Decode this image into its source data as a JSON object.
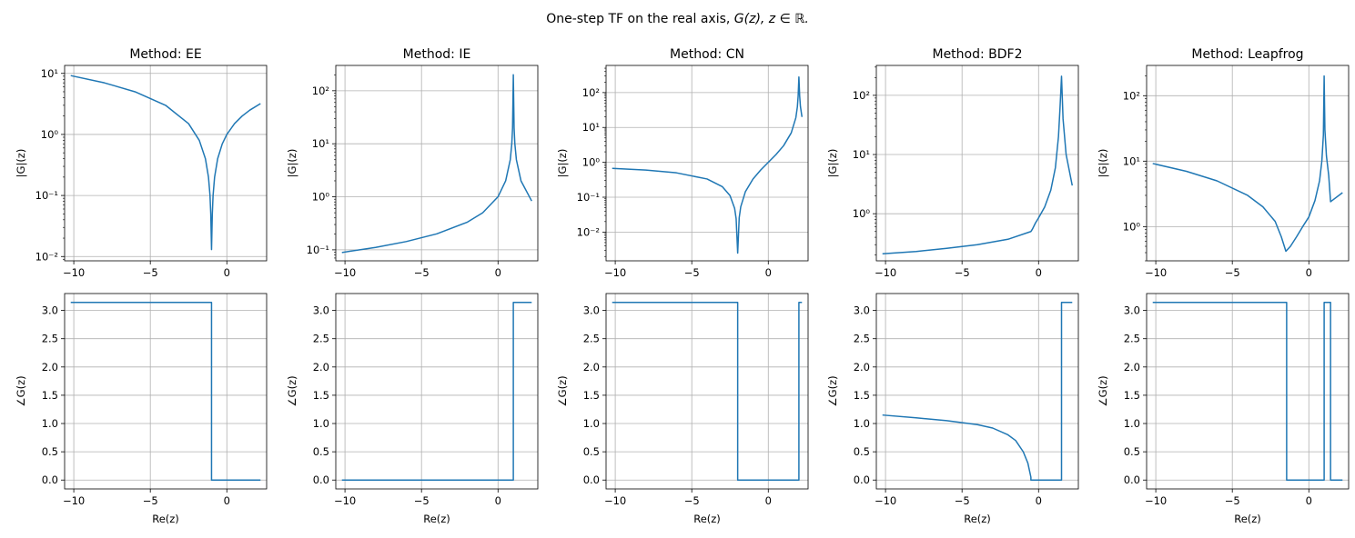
{
  "suptitle_prefix": "One-step TF on the real axis, ",
  "suptitle_math": "G(z), z ∈ ℝ.",
  "line_color": "#1f77b4",
  "grid_color": "#b0b0b0",
  "xticks": [
    -10,
    -5,
    0
  ],
  "xlabel": "Re(z)",
  "ylabel_mag": "|G|(z)",
  "ylabel_phase": "∠G(z)",
  "chart_data": [
    {
      "type": "line",
      "method": "EE",
      "title": "Method: EE",
      "row": "magnitude",
      "yscale": "log",
      "xlim": [
        -10.6,
        2.6
      ],
      "ylim": [
        0.0085,
        13.5
      ],
      "yticks": [
        {
          "v": 10,
          "label": "10¹"
        },
        {
          "v": 1,
          "label": "10⁰"
        },
        {
          "v": 0.1,
          "label": "10⁻¹"
        },
        {
          "v": 0.01,
          "label": "10⁻²"
        }
      ],
      "x": [
        -10.2,
        -8,
        -6,
        -4,
        -2.5,
        -1.8,
        -1.4,
        -1.2,
        -1.1,
        -1.05,
        -1.0,
        -0.95,
        -0.9,
        -0.8,
        -0.6,
        -0.3,
        0,
        0.5,
        1,
        1.5,
        2.2
      ],
      "y": [
        9.2,
        7,
        5,
        3,
        1.5,
        0.8,
        0.4,
        0.2,
        0.1,
        0.05,
        0.013,
        0.05,
        0.1,
        0.2,
        0.4,
        0.7,
        1,
        1.5,
        2,
        2.5,
        3.2
      ]
    },
    {
      "type": "line",
      "method": "IE",
      "title": "Method: IE",
      "row": "magnitude",
      "yscale": "log",
      "xlim": [
        -10.6,
        2.6
      ],
      "ylim": [
        0.062,
        300
      ],
      "yticks": [
        {
          "v": 100,
          "label": "10²"
        },
        {
          "v": 10,
          "label": "10¹"
        },
        {
          "v": 1,
          "label": "10⁰"
        },
        {
          "v": 0.1,
          "label": "10⁻¹"
        }
      ],
      "x": [
        -10.2,
        -8,
        -6,
        -4,
        -2,
        -1,
        0,
        0.5,
        0.8,
        0.9,
        0.95,
        1.0,
        1.05,
        1.1,
        1.2,
        1.5,
        2.2
      ],
      "y": [
        0.089,
        0.111,
        0.143,
        0.2,
        0.333,
        0.5,
        1,
        2,
        5,
        10,
        20,
        200,
        20,
        10,
        5,
        2,
        0.833
      ]
    },
    {
      "type": "line",
      "method": "CN",
      "title": "Method: CN",
      "row": "magnitude",
      "yscale": "log",
      "xlim": [
        -10.6,
        2.6
      ],
      "ylim": [
        0.0015,
        600
      ],
      "yticks": [
        {
          "v": 100,
          "label": "10²"
        },
        {
          "v": 10,
          "label": "10¹"
        },
        {
          "v": 1,
          "label": "10⁰"
        },
        {
          "v": 0.1,
          "label": "10⁻¹"
        },
        {
          "v": 0.01,
          "label": "10⁻²"
        }
      ],
      "x": [
        -10.2,
        -8,
        -6,
        -4,
        -3,
        -2.5,
        -2.2,
        -2.1,
        -2.0,
        -1.9,
        -1.8,
        -1.5,
        -1,
        -0.5,
        0,
        0.5,
        1,
        1.5,
        1.8,
        1.9,
        1.95,
        2.0,
        2.05,
        2.1,
        2.2
      ],
      "y": [
        0.672,
        0.6,
        0.5,
        0.333,
        0.2,
        0.111,
        0.048,
        0.024,
        0.0025,
        0.026,
        0.053,
        0.143,
        0.333,
        0.6,
        1,
        1.667,
        3,
        7,
        19,
        39,
        79,
        280,
        80,
        40,
        20
      ]
    },
    {
      "type": "line",
      "method": "BDF2",
      "title": "Method: BDF2",
      "row": "magnitude",
      "yscale": "log",
      "xlim": [
        -10.6,
        2.6
      ],
      "ylim": [
        0.16,
        320
      ],
      "yticks": [
        {
          "v": 100,
          "label": "10²"
        },
        {
          "v": 10,
          "label": "10¹"
        },
        {
          "v": 1,
          "label": "10⁰"
        }
      ],
      "x": [
        -10.2,
        -8,
        -6,
        -4,
        -2,
        -0.5,
        -0.4,
        -0.2,
        0,
        0.4,
        0.8,
        1.1,
        1.3,
        1.4,
        1.5,
        1.6,
        1.8,
        2.2
      ],
      "y": [
        0.21,
        0.23,
        0.26,
        0.3,
        0.37,
        0.5,
        0.55,
        0.7,
        0.85,
        1.3,
        2.5,
        6,
        20,
        60,
        210,
        40,
        10,
        3
      ]
    },
    {
      "type": "line",
      "method": "Leapfrog",
      "title": "Method: Leapfrog",
      "row": "magnitude",
      "yscale": "log",
      "xlim": [
        -10.6,
        2.6
      ],
      "ylim": [
        0.3,
        290
      ],
      "yticks": [
        {
          "v": 100,
          "label": "10²"
        },
        {
          "v": 10,
          "label": "10¹"
        },
        {
          "v": 1,
          "label": "10⁰"
        }
      ],
      "x": [
        -10.2,
        -8,
        -6,
        -4,
        -3,
        -2.2,
        -1.8,
        -1.5,
        -1.2,
        -0.8,
        -0.4,
        0,
        0.4,
        0.7,
        0.85,
        0.95,
        1.0,
        1.05,
        1.15,
        1.3,
        1.42,
        2.2
      ],
      "y": [
        9.2,
        7,
        5,
        3,
        2,
        1.2,
        0.7,
        0.42,
        0.5,
        0.7,
        1,
        1.4,
        2.5,
        5,
        10,
        25,
        200,
        30,
        12,
        6,
        2.4,
        3.3
      ]
    },
    {
      "type": "line",
      "method": "EE",
      "row": "phase",
      "yscale": "linear",
      "xlim": [
        -10.6,
        2.6
      ],
      "ylim": [
        -0.157,
        3.299
      ],
      "yticks": [
        {
          "v": 0,
          "label": "0.0"
        },
        {
          "v": 0.5,
          "label": "0.5"
        },
        {
          "v": 1,
          "label": "1.0"
        },
        {
          "v": 1.5,
          "label": "1.5"
        },
        {
          "v": 2,
          "label": "2.0"
        },
        {
          "v": 2.5,
          "label": "2.5"
        },
        {
          "v": 3,
          "label": "3.0"
        }
      ],
      "x": [
        -10.2,
        -1,
        -1,
        2.2
      ],
      "y": [
        3.1416,
        3.1416,
        0,
        0
      ]
    },
    {
      "type": "line",
      "method": "IE",
      "row": "phase",
      "yscale": "linear",
      "xlim": [
        -10.6,
        2.6
      ],
      "ylim": [
        -0.157,
        3.299
      ],
      "yticks": [
        {
          "v": 0,
          "label": "0.0"
        },
        {
          "v": 0.5,
          "label": "0.5"
        },
        {
          "v": 1,
          "label": "1.0"
        },
        {
          "v": 1.5,
          "label": "1.5"
        },
        {
          "v": 2,
          "label": "2.0"
        },
        {
          "v": 2.5,
          "label": "2.5"
        },
        {
          "v": 3,
          "label": "3.0"
        }
      ],
      "x": [
        -10.2,
        1,
        1,
        2.2
      ],
      "y": [
        0,
        0,
        3.1416,
        3.1416
      ]
    },
    {
      "type": "line",
      "method": "CN",
      "row": "phase",
      "yscale": "linear",
      "xlim": [
        -10.6,
        2.6
      ],
      "ylim": [
        -0.157,
        3.299
      ],
      "yticks": [
        {
          "v": 0,
          "label": "0.0"
        },
        {
          "v": 0.5,
          "label": "0.5"
        },
        {
          "v": 1,
          "label": "1.0"
        },
        {
          "v": 1.5,
          "label": "1.5"
        },
        {
          "v": 2,
          "label": "2.0"
        },
        {
          "v": 2.5,
          "label": "2.5"
        },
        {
          "v": 3,
          "label": "3.0"
        }
      ],
      "x": [
        -10.2,
        -2,
        -2,
        2,
        2,
        2.2
      ],
      "y": [
        3.1416,
        3.1416,
        0,
        0,
        3.1416,
        3.1416
      ]
    },
    {
      "type": "line",
      "method": "BDF2",
      "row": "phase",
      "yscale": "linear",
      "xlim": [
        -10.6,
        2.6
      ],
      "ylim": [
        -0.157,
        3.299
      ],
      "yticks": [
        {
          "v": 0,
          "label": "0.0"
        },
        {
          "v": 0.5,
          "label": "0.5"
        },
        {
          "v": 1,
          "label": "1.0"
        },
        {
          "v": 1.5,
          "label": "1.5"
        },
        {
          "v": 2,
          "label": "2.0"
        },
        {
          "v": 2.5,
          "label": "2.5"
        },
        {
          "v": 3,
          "label": "3.0"
        }
      ],
      "x": [
        -10.2,
        -8,
        -6,
        -4,
        -3,
        -2,
        -1.5,
        -1,
        -0.7,
        -0.5,
        -0.5,
        1.5,
        1.5,
        2.2
      ],
      "y": [
        1.15,
        1.1,
        1.05,
        0.98,
        0.92,
        0.8,
        0.7,
        0.5,
        0.3,
        0.05,
        0,
        0,
        3.1416,
        3.1416
      ]
    },
    {
      "type": "line",
      "method": "Leapfrog",
      "row": "phase",
      "yscale": "linear",
      "xlim": [
        -10.6,
        2.6
      ],
      "ylim": [
        -0.157,
        3.299
      ],
      "yticks": [
        {
          "v": 0,
          "label": "0.0"
        },
        {
          "v": 0.5,
          "label": "0.5"
        },
        {
          "v": 1,
          "label": "1.0"
        },
        {
          "v": 1.5,
          "label": "1.5"
        },
        {
          "v": 2,
          "label": "2.0"
        },
        {
          "v": 2.5,
          "label": "2.5"
        },
        {
          "v": 3,
          "label": "3.0"
        }
      ],
      "x": [
        -10.2,
        -1.45,
        -1.45,
        1,
        1,
        1.42,
        1.42,
        2.2
      ],
      "y": [
        3.1416,
        3.1416,
        0,
        0,
        3.1416,
        3.1416,
        0,
        0
      ]
    }
  ]
}
